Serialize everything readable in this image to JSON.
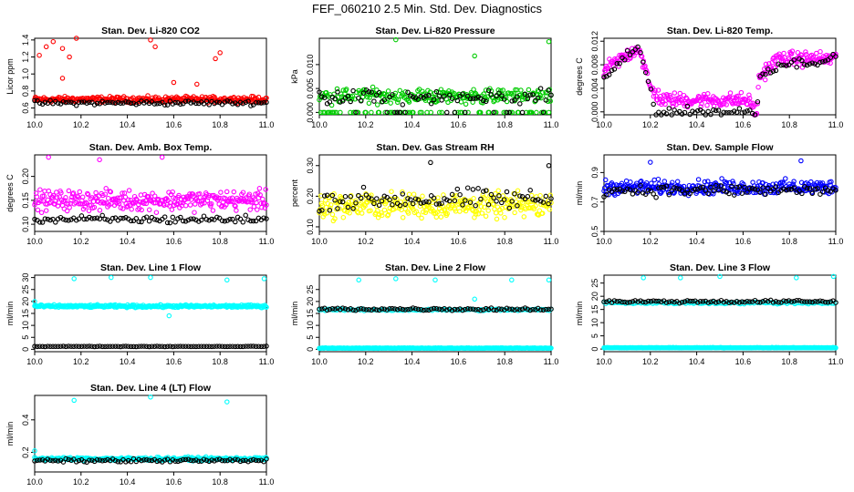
{
  "figure": {
    "title": "FEF_060210  2.5 Min. Std. Dev. Diagnostics"
  },
  "chart_data": [
    {
      "type": "scatter",
      "title": "Stan. Dev. Li-820 CO2",
      "ylabel": "Licor ppm",
      "xlim": [
        10.0,
        11.0
      ],
      "ylim": [
        0.52,
        1.42
      ],
      "xticks": [
        "10.0",
        "10.2",
        "10.4",
        "10.6",
        "10.8",
        "11.0"
      ],
      "yticks": [
        "0.6",
        "0.8",
        "1.0",
        "1.2",
        "1.4"
      ],
      "series": [
        {
          "color": "#ff0000",
          "base": 0.7,
          "spread": 0.05,
          "outliers": [
            [
              10.02,
              1.22
            ],
            [
              10.05,
              1.32
            ],
            [
              10.08,
              1.38
            ],
            [
              10.12,
              1.3
            ],
            [
              10.15,
              1.2
            ],
            [
              10.18,
              1.42
            ],
            [
              10.5,
              1.4
            ],
            [
              10.52,
              1.32
            ],
            [
              10.78,
              1.18
            ],
            [
              10.8,
              1.25
            ],
            [
              10.12,
              0.95
            ],
            [
              10.6,
              0.9
            ],
            [
              10.7,
              0.88
            ]
          ]
        },
        {
          "color": "#000000",
          "base": 0.66,
          "spread": 0.04,
          "outliers": []
        }
      ]
    },
    {
      "type": "scatter",
      "title": "Stan. Dev. Li-820 Pressure",
      "ylabel": "kPa",
      "xlim": [
        10.0,
        11.0
      ],
      "ylim": [
        -0.0005,
        0.0155
      ],
      "xticks": [
        "10.0",
        "10.2",
        "10.4",
        "10.6",
        "10.8",
        "11.0"
      ],
      "yticks": [
        "0.000",
        "0.005",
        "0.010"
      ],
      "series": [
        {
          "color": "#00cc00",
          "base": 0.0035,
          "spread": 0.0022,
          "outliers": [
            [
              10.33,
              0.0152
            ],
            [
              10.67,
              0.0118
            ],
            [
              10.99,
              0.0148
            ]
          ],
          "floor": 0.0
        },
        {
          "color": "#000000",
          "base": 0.003,
          "spread": 0.0025,
          "outliers": [],
          "floor": 0.0
        }
      ]
    },
    {
      "type": "scatter",
      "title": "Stan. Dev. Li-820 Temp.",
      "ylabel": "degrees C",
      "xlim": [
        10.0,
        11.0
      ],
      "ylim": [
        -0.0005,
        0.0125
      ],
      "xticks": [
        "10.0",
        "10.2",
        "10.4",
        "10.6",
        "10.8",
        "11.0"
      ],
      "yticks": [
        "0.000",
        "0.004",
        "0.008",
        "0.012"
      ],
      "series": [
        {
          "color": "#ff00ff",
          "profile": [
            [
              10.0,
              0.007
            ],
            [
              10.15,
              0.011
            ],
            [
              10.2,
              0.004
            ],
            [
              10.25,
              0.002
            ],
            [
              10.62,
              0.002
            ],
            [
              10.66,
              0.0
            ],
            [
              10.67,
              0.006
            ],
            [
              10.75,
              0.009
            ],
            [
              11.0,
              0.009
            ]
          ],
          "spread": 0.0018
        },
        {
          "color": "#000000",
          "profile": [
            [
              10.0,
              0.006
            ],
            [
              10.15,
              0.011
            ],
            [
              10.2,
              0.004
            ],
            [
              10.22,
              0.0
            ],
            [
              10.66,
              0.0
            ],
            [
              10.67,
              0.006
            ],
            [
              10.75,
              0.008
            ],
            [
              11.0,
              0.009
            ]
          ],
          "spread": 0.0012
        }
      ]
    },
    {
      "type": "scatter",
      "title": "Stan. Dev. Amb. Box Temp.",
      "ylabel": "degrees C",
      "xlim": [
        10.0,
        11.0
      ],
      "ylim": [
        0.085,
        0.245
      ],
      "xticks": [
        "10.0",
        "10.2",
        "10.4",
        "10.6",
        "10.8",
        "11.0"
      ],
      "yticks": [
        "0.10",
        "0.15",
        "0.20"
      ],
      "series": [
        {
          "color": "#ff00ff",
          "base": 0.15,
          "spread": 0.03,
          "outliers": [
            [
              10.06,
              0.24
            ],
            [
              10.28,
              0.235
            ],
            [
              10.55,
              0.24
            ]
          ]
        },
        {
          "color": "#000000",
          "base": 0.11,
          "spread": 0.012,
          "outliers": []
        }
      ]
    },
    {
      "type": "scatter",
      "title": "Stan. Dev. Gas Stream RH",
      "ylabel": "percent",
      "xlim": [
        10.0,
        11.0
      ],
      "ylim": [
        0.085,
        0.335
      ],
      "xticks": [
        "10.0",
        "10.2",
        "10.4",
        "10.6",
        "10.8",
        "11.0"
      ],
      "yticks": [
        "0.10",
        "0.20",
        "0.30"
      ],
      "series": [
        {
          "color": "#ffff00",
          "base": 0.17,
          "spread": 0.06,
          "outliers": []
        },
        {
          "color": "#000000",
          "base": 0.19,
          "spread": 0.05,
          "outliers": [
            [
              10.48,
              0.31
            ],
            [
              10.99,
              0.3
            ]
          ]
        }
      ]
    },
    {
      "type": "scatter",
      "title": "Stan. Dev. Sample Flow",
      "ylabel": "ml/min",
      "xlim": [
        10.0,
        11.0
      ],
      "ylim": [
        0.5,
        1.02
      ],
      "xticks": [
        "10.0",
        "10.2",
        "10.4",
        "10.6",
        "10.8",
        "11.0"
      ],
      "yticks": [
        "0.5",
        "0.7",
        "0.9"
      ],
      "series": [
        {
          "color": "#0000ff",
          "base": 0.8,
          "spread": 0.07,
          "outliers": [
            [
              10.85,
              0.98
            ],
            [
              10.2,
              0.97
            ]
          ]
        },
        {
          "color": "#000000",
          "base": 0.78,
          "spread": 0.06,
          "outliers": []
        }
      ]
    },
    {
      "type": "scatter",
      "title": "Stan. Dev. Line 1 Flow",
      "ylabel": "ml/min",
      "xlim": [
        10.0,
        11.0
      ],
      "ylim": [
        -1,
        31
      ],
      "xticks": [
        "10.0",
        "10.2",
        "10.4",
        "10.6",
        "10.8",
        "11.0"
      ],
      "yticks": [
        "0",
        "5",
        "10",
        "15",
        "20",
        "25",
        "30"
      ],
      "series": [
        {
          "color": "#00ffff",
          "base": 18,
          "spread": 0.8,
          "outliers": [
            [
              10.0,
              20
            ],
            [
              10.17,
              29.5
            ],
            [
              10.33,
              30
            ],
            [
              10.5,
              30
            ],
            [
              10.58,
              14
            ],
            [
              10.83,
              29
            ],
            [
              10.99,
              29.5
            ]
          ]
        },
        {
          "color": "#000000",
          "base": 1.2,
          "spread": 0.15,
          "outliers": []
        }
      ]
    },
    {
      "type": "scatter",
      "title": "Stan. Dev. Line 2 Flow",
      "ylabel": "ml/min",
      "xlim": [
        10.0,
        11.0
      ],
      "ylim": [
        -1,
        31
      ],
      "xticks": [
        "10.0",
        "10.2",
        "10.4",
        "10.6",
        "10.8",
        "11.0"
      ],
      "yticks": [
        "0",
        "5",
        "10",
        "15",
        "20",
        "25"
      ],
      "series": [
        {
          "color": "#00ffff",
          "base": 0.5,
          "spread": 0.15,
          "outliers": [
            [
              10.17,
              29
            ],
            [
              10.33,
              29.5
            ],
            [
              10.5,
              29
            ],
            [
              10.67,
              21
            ],
            [
              10.83,
              29
            ],
            [
              10.99,
              29
            ]
          ],
          "band": 16.5
        },
        {
          "color": "#000000",
          "base": 16.8,
          "spread": 0.9,
          "outliers": []
        }
      ]
    },
    {
      "type": "scatter",
      "title": "Stan. Dev. Line 3 Flow",
      "ylabel": "ml/min",
      "xlim": [
        10.0,
        11.0
      ],
      "ylim": [
        -1,
        28
      ],
      "xticks": [
        "10.0",
        "10.2",
        "10.4",
        "10.6",
        "10.8",
        "11.0"
      ],
      "yticks": [
        "0",
        "5",
        "10",
        "15",
        "20",
        "25"
      ],
      "series": [
        {
          "color": "#00ffff",
          "base": 0.5,
          "spread": 0.15,
          "outliers": [
            [
              10.17,
              27
            ],
            [
              10.33,
              27
            ],
            [
              10.5,
              27.5
            ],
            [
              10.83,
              27
            ],
            [
              10.99,
              27.5
            ]
          ],
          "band": 17.5
        },
        {
          "color": "#000000",
          "base": 18,
          "spread": 0.8,
          "outliers": []
        }
      ]
    },
    {
      "type": "scatter",
      "title": "Stan. Dev. Line 4 (LT) Flow",
      "ylabel": "ml/min",
      "xlim": [
        10.0,
        11.0
      ],
      "ylim": [
        0.08,
        0.55
      ],
      "xticks": [
        "10.0",
        "10.2",
        "10.4",
        "10.6",
        "10.8",
        "11.0"
      ],
      "yticks": [
        "0.2",
        "0.4"
      ],
      "series": [
        {
          "color": "#00ffff",
          "base": 0.16,
          "spread": 0.015,
          "outliers": [
            [
              10.0,
              0.21
            ],
            [
              10.17,
              0.52
            ],
            [
              10.5,
              0.54
            ],
            [
              10.83,
              0.51
            ]
          ]
        },
        {
          "color": "#000000",
          "base": 0.15,
          "spread": 0.015,
          "outliers": []
        }
      ]
    }
  ]
}
